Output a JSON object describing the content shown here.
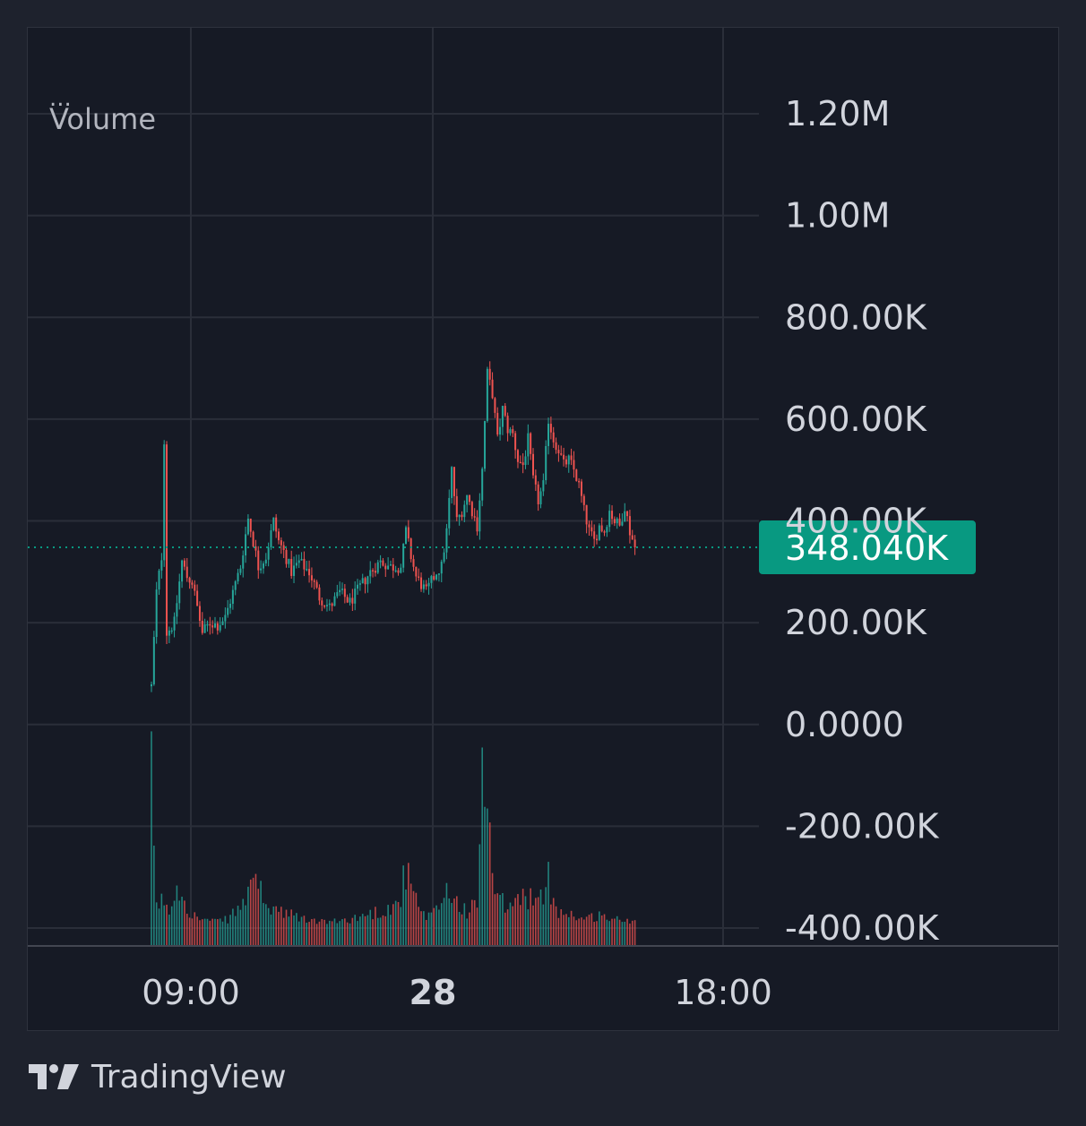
{
  "legend": {
    "dots": "...",
    "title": "Volume"
  },
  "footer": {
    "brand": "TradingView"
  },
  "price_tag": {
    "label": "348.040K",
    "value": 348040,
    "color": "#089981"
  },
  "colors": {
    "up": "#26a69a",
    "down": "#ef5350",
    "grid": "#2a2e39",
    "background": "#161a25",
    "page": "#1e222d",
    "text": "#d1d4dc"
  },
  "chart_data": {
    "type": "candlestick",
    "title": "",
    "y_ticks": [
      {
        "value": 1200000,
        "label": "1.20M"
      },
      {
        "value": 1000000,
        "label": "1.00M"
      },
      {
        "value": 800000,
        "label": "800.00K"
      },
      {
        "value": 600000,
        "label": "600.00K"
      },
      {
        "value": 400000,
        "label": "400.00K"
      },
      {
        "value": 200000,
        "label": "200.00K"
      },
      {
        "value": 0,
        "label": "0.0000"
      },
      {
        "value": -200000,
        "label": "-200.00K"
      },
      {
        "value": -400000,
        "label": "-400.00K"
      }
    ],
    "ylim": [
      -400000,
      1200000
    ],
    "x_ticks": [
      {
        "label": "09:00",
        "bold": false
      },
      {
        "label": "28",
        "bold": true
      },
      {
        "label": "18:00",
        "bold": false
      }
    ],
    "legend_placement": "top-left",
    "grid": true,
    "last_value": 348040,
    "price_path": [
      [
        0,
        75000
      ],
      [
        2,
        260000
      ],
      [
        4,
        330000
      ],
      [
        5,
        560000
      ],
      [
        6,
        180000
      ],
      [
        9,
        200000
      ],
      [
        12,
        320000
      ],
      [
        14,
        290000
      ],
      [
        16,
        280000
      ],
      [
        18,
        230000
      ],
      [
        20,
        180000
      ],
      [
        23,
        200000
      ],
      [
        26,
        195000
      ],
      [
        29,
        210000
      ],
      [
        32,
        260000
      ],
      [
        35,
        310000
      ],
      [
        38,
        405000
      ],
      [
        40,
        360000
      ],
      [
        42,
        310000
      ],
      [
        45,
        330000
      ],
      [
        48,
        400000
      ],
      [
        50,
        360000
      ],
      [
        52,
        340000
      ],
      [
        55,
        300000
      ],
      [
        58,
        320000
      ],
      [
        62,
        300000
      ],
      [
        66,
        250000
      ],
      [
        70,
        230000
      ],
      [
        74,
        260000
      ],
      [
        78,
        240000
      ],
      [
        82,
        270000
      ],
      [
        86,
        300000
      ],
      [
        90,
        320000
      ],
      [
        94,
        310000
      ],
      [
        98,
        310000
      ],
      [
        100,
        380000
      ],
      [
        102,
        330000
      ],
      [
        104,
        290000
      ],
      [
        108,
        260000
      ],
      [
        112,
        300000
      ],
      [
        114,
        310000
      ],
      [
        116,
        380000
      ],
      [
        118,
        500000
      ],
      [
        120,
        400000
      ],
      [
        122,
        420000
      ],
      [
        124,
        450000
      ],
      [
        126,
        420000
      ],
      [
        128,
        390000
      ],
      [
        130,
        500000
      ],
      [
        132,
        690000
      ],
      [
        134,
        650000
      ],
      [
        136,
        560000
      ],
      [
        138,
        620000
      ],
      [
        140,
        580000
      ],
      [
        142,
        570000
      ],
      [
        144,
        520000
      ],
      [
        146,
        510000
      ],
      [
        148,
        560000
      ],
      [
        150,
        480000
      ],
      [
        152,
        440000
      ],
      [
        154,
        470000
      ],
      [
        156,
        600000
      ],
      [
        158,
        560000
      ],
      [
        160,
        540000
      ],
      [
        162,
        510000
      ],
      [
        164,
        520000
      ],
      [
        166,
        500000
      ],
      [
        168,
        470000
      ],
      [
        170,
        420000
      ],
      [
        172,
        380000
      ],
      [
        174,
        360000
      ],
      [
        176,
        390000
      ],
      [
        178,
        380000
      ],
      [
        180,
        420000
      ],
      [
        182,
        400000
      ],
      [
        184,
        390000
      ],
      [
        186,
        430000
      ],
      [
        188,
        380000
      ],
      [
        190,
        348040
      ]
    ],
    "volume_path": [
      [
        0,
        310000
      ],
      [
        1,
        140000
      ],
      [
        2,
        70000
      ],
      [
        3,
        60000
      ],
      [
        5,
        60000
      ],
      [
        6,
        40000
      ],
      [
        8,
        50000
      ],
      [
        10,
        120000
      ],
      [
        12,
        80000
      ],
      [
        14,
        60000
      ],
      [
        16,
        30000
      ],
      [
        20,
        20000
      ],
      [
        25,
        15000
      ],
      [
        30,
        20000
      ],
      [
        35,
        50000
      ],
      [
        38,
        70000
      ],
      [
        40,
        180000
      ],
      [
        44,
        40000
      ],
      [
        48,
        50000
      ],
      [
        52,
        30000
      ],
      [
        56,
        30000
      ],
      [
        60,
        20000
      ],
      [
        66,
        15000
      ],
      [
        72,
        15000
      ],
      [
        78,
        20000
      ],
      [
        84,
        30000
      ],
      [
        90,
        40000
      ],
      [
        96,
        50000
      ],
      [
        100,
        120000
      ],
      [
        104,
        60000
      ],
      [
        108,
        20000
      ],
      [
        112,
        40000
      ],
      [
        116,
        90000
      ],
      [
        120,
        60000
      ],
      [
        124,
        40000
      ],
      [
        128,
        50000
      ],
      [
        130,
        420000
      ],
      [
        132,
        260000
      ],
      [
        134,
        110000
      ],
      [
        136,
        60000
      ],
      [
        140,
        50000
      ],
      [
        144,
        60000
      ],
      [
        148,
        80000
      ],
      [
        152,
        50000
      ],
      [
        156,
        110000
      ],
      [
        160,
        40000
      ],
      [
        166,
        30000
      ],
      [
        170,
        20000
      ],
      [
        176,
        30000
      ],
      [
        182,
        20000
      ],
      [
        190,
        15000
      ]
    ]
  }
}
